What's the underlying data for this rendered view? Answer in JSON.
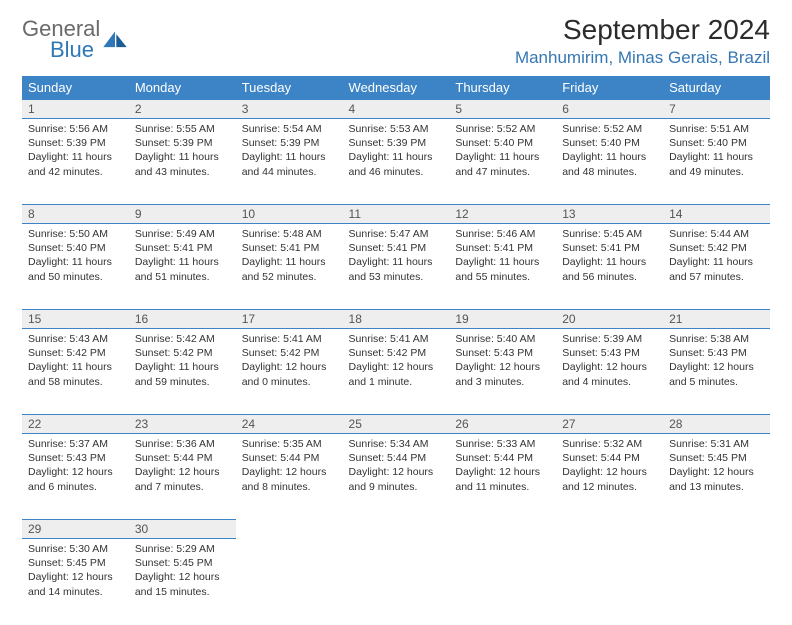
{
  "brand": {
    "general": "General",
    "blue": "Blue"
  },
  "header": {
    "month_title": "September 2024",
    "location": "Manhumirim, Minas Gerais, Brazil"
  },
  "style": {
    "header_bg": "#3d84c6",
    "header_text": "#ffffff",
    "row_divider": "#3d84c6",
    "daynum_bg": "#eeeeee",
    "daynum_text": "#555555",
    "body_text": "#333333",
    "location_color": "#3677b3",
    "logo_gray": "#6a6a6a",
    "logo_blue": "#2f78b8",
    "month_title_fontsize": 28,
    "location_fontsize": 17,
    "th_fontsize": 13,
    "cell_fontsize": 10.5
  },
  "weekdays": [
    "Sunday",
    "Monday",
    "Tuesday",
    "Wednesday",
    "Thursday",
    "Friday",
    "Saturday"
  ],
  "weeks": [
    [
      {
        "n": "1",
        "sr": "Sunrise: 5:56 AM",
        "ss": "Sunset: 5:39 PM",
        "d1": "Daylight: 11 hours",
        "d2": "and 42 minutes."
      },
      {
        "n": "2",
        "sr": "Sunrise: 5:55 AM",
        "ss": "Sunset: 5:39 PM",
        "d1": "Daylight: 11 hours",
        "d2": "and 43 minutes."
      },
      {
        "n": "3",
        "sr": "Sunrise: 5:54 AM",
        "ss": "Sunset: 5:39 PM",
        "d1": "Daylight: 11 hours",
        "d2": "and 44 minutes."
      },
      {
        "n": "4",
        "sr": "Sunrise: 5:53 AM",
        "ss": "Sunset: 5:39 PM",
        "d1": "Daylight: 11 hours",
        "d2": "and 46 minutes."
      },
      {
        "n": "5",
        "sr": "Sunrise: 5:52 AM",
        "ss": "Sunset: 5:40 PM",
        "d1": "Daylight: 11 hours",
        "d2": "and 47 minutes."
      },
      {
        "n": "6",
        "sr": "Sunrise: 5:52 AM",
        "ss": "Sunset: 5:40 PM",
        "d1": "Daylight: 11 hours",
        "d2": "and 48 minutes."
      },
      {
        "n": "7",
        "sr": "Sunrise: 5:51 AM",
        "ss": "Sunset: 5:40 PM",
        "d1": "Daylight: 11 hours",
        "d2": "and 49 minutes."
      }
    ],
    [
      {
        "n": "8",
        "sr": "Sunrise: 5:50 AM",
        "ss": "Sunset: 5:40 PM",
        "d1": "Daylight: 11 hours",
        "d2": "and 50 minutes."
      },
      {
        "n": "9",
        "sr": "Sunrise: 5:49 AM",
        "ss": "Sunset: 5:41 PM",
        "d1": "Daylight: 11 hours",
        "d2": "and 51 minutes."
      },
      {
        "n": "10",
        "sr": "Sunrise: 5:48 AM",
        "ss": "Sunset: 5:41 PM",
        "d1": "Daylight: 11 hours",
        "d2": "and 52 minutes."
      },
      {
        "n": "11",
        "sr": "Sunrise: 5:47 AM",
        "ss": "Sunset: 5:41 PM",
        "d1": "Daylight: 11 hours",
        "d2": "and 53 minutes."
      },
      {
        "n": "12",
        "sr": "Sunrise: 5:46 AM",
        "ss": "Sunset: 5:41 PM",
        "d1": "Daylight: 11 hours",
        "d2": "and 55 minutes."
      },
      {
        "n": "13",
        "sr": "Sunrise: 5:45 AM",
        "ss": "Sunset: 5:41 PM",
        "d1": "Daylight: 11 hours",
        "d2": "and 56 minutes."
      },
      {
        "n": "14",
        "sr": "Sunrise: 5:44 AM",
        "ss": "Sunset: 5:42 PM",
        "d1": "Daylight: 11 hours",
        "d2": "and 57 minutes."
      }
    ],
    [
      {
        "n": "15",
        "sr": "Sunrise: 5:43 AM",
        "ss": "Sunset: 5:42 PM",
        "d1": "Daylight: 11 hours",
        "d2": "and 58 minutes."
      },
      {
        "n": "16",
        "sr": "Sunrise: 5:42 AM",
        "ss": "Sunset: 5:42 PM",
        "d1": "Daylight: 11 hours",
        "d2": "and 59 minutes."
      },
      {
        "n": "17",
        "sr": "Sunrise: 5:41 AM",
        "ss": "Sunset: 5:42 PM",
        "d1": "Daylight: 12 hours",
        "d2": "and 0 minutes."
      },
      {
        "n": "18",
        "sr": "Sunrise: 5:41 AM",
        "ss": "Sunset: 5:42 PM",
        "d1": "Daylight: 12 hours",
        "d2": "and 1 minute."
      },
      {
        "n": "19",
        "sr": "Sunrise: 5:40 AM",
        "ss": "Sunset: 5:43 PM",
        "d1": "Daylight: 12 hours",
        "d2": "and 3 minutes."
      },
      {
        "n": "20",
        "sr": "Sunrise: 5:39 AM",
        "ss": "Sunset: 5:43 PM",
        "d1": "Daylight: 12 hours",
        "d2": "and 4 minutes."
      },
      {
        "n": "21",
        "sr": "Sunrise: 5:38 AM",
        "ss": "Sunset: 5:43 PM",
        "d1": "Daylight: 12 hours",
        "d2": "and 5 minutes."
      }
    ],
    [
      {
        "n": "22",
        "sr": "Sunrise: 5:37 AM",
        "ss": "Sunset: 5:43 PM",
        "d1": "Daylight: 12 hours",
        "d2": "and 6 minutes."
      },
      {
        "n": "23",
        "sr": "Sunrise: 5:36 AM",
        "ss": "Sunset: 5:44 PM",
        "d1": "Daylight: 12 hours",
        "d2": "and 7 minutes."
      },
      {
        "n": "24",
        "sr": "Sunrise: 5:35 AM",
        "ss": "Sunset: 5:44 PM",
        "d1": "Daylight: 12 hours",
        "d2": "and 8 minutes."
      },
      {
        "n": "25",
        "sr": "Sunrise: 5:34 AM",
        "ss": "Sunset: 5:44 PM",
        "d1": "Daylight: 12 hours",
        "d2": "and 9 minutes."
      },
      {
        "n": "26",
        "sr": "Sunrise: 5:33 AM",
        "ss": "Sunset: 5:44 PM",
        "d1": "Daylight: 12 hours",
        "d2": "and 11 minutes."
      },
      {
        "n": "27",
        "sr": "Sunrise: 5:32 AM",
        "ss": "Sunset: 5:44 PM",
        "d1": "Daylight: 12 hours",
        "d2": "and 12 minutes."
      },
      {
        "n": "28",
        "sr": "Sunrise: 5:31 AM",
        "ss": "Sunset: 5:45 PM",
        "d1": "Daylight: 12 hours",
        "d2": "and 13 minutes."
      }
    ],
    [
      {
        "n": "29",
        "sr": "Sunrise: 5:30 AM",
        "ss": "Sunset: 5:45 PM",
        "d1": "Daylight: 12 hours",
        "d2": "and 14 minutes."
      },
      {
        "n": "30",
        "sr": "Sunrise: 5:29 AM",
        "ss": "Sunset: 5:45 PM",
        "d1": "Daylight: 12 hours",
        "d2": "and 15 minutes."
      },
      null,
      null,
      null,
      null,
      null
    ]
  ]
}
